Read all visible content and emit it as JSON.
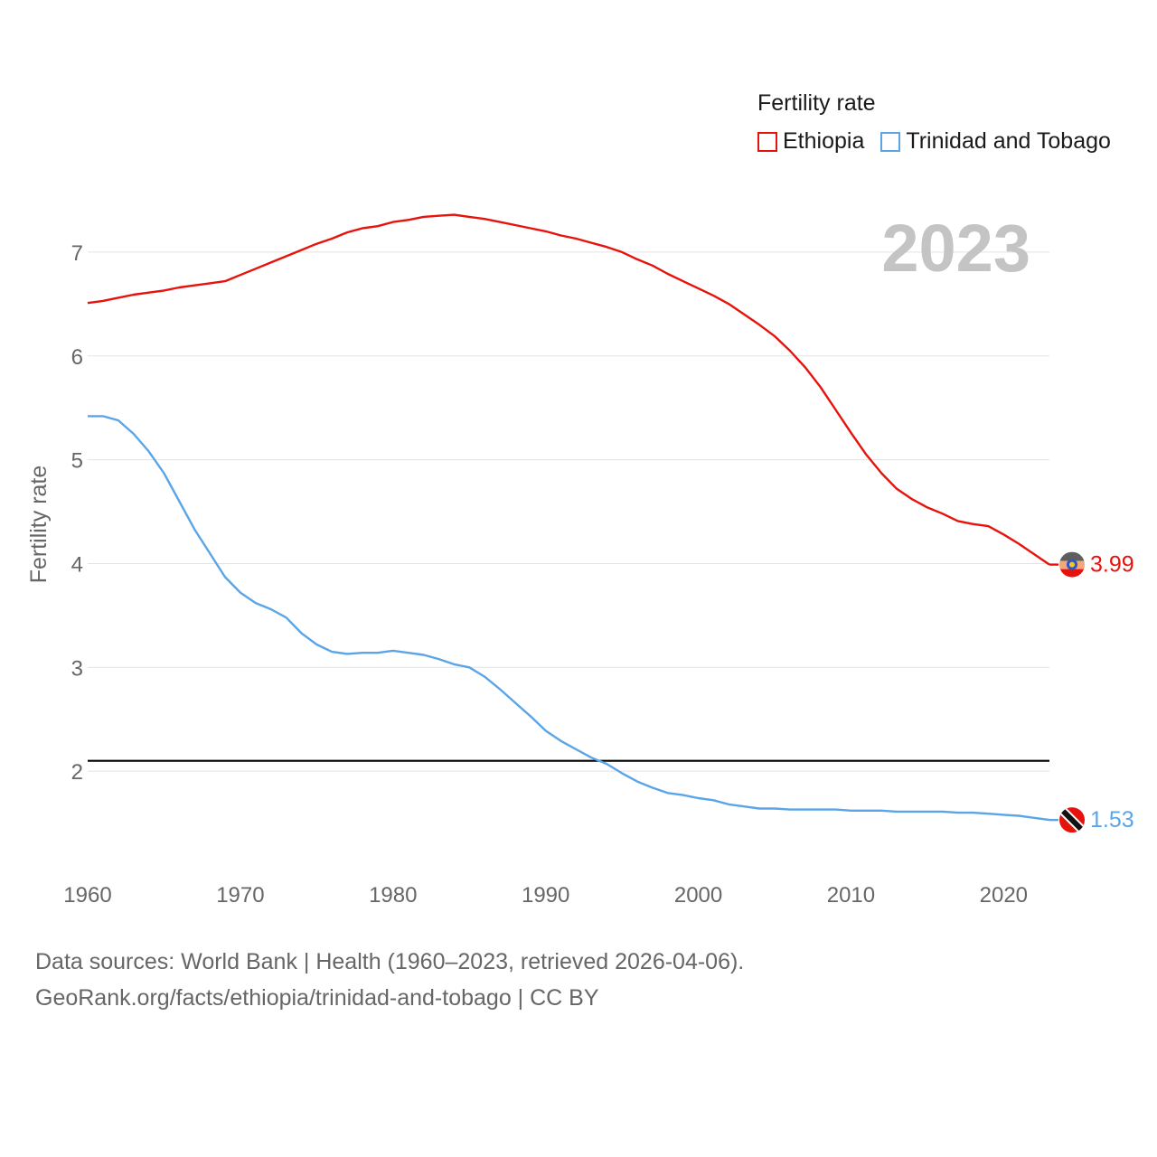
{
  "legend": {
    "title": "Fertility rate",
    "items": [
      {
        "label": "Ethiopia",
        "color": "#e8120c"
      },
      {
        "label": "Trinidad and Tobago",
        "color": "#5aa5e8"
      }
    ]
  },
  "footer": {
    "line1": "Data sources: World Bank | Health (1960–2023, retrieved 2026-04-06).",
    "line2": "GeoRank.org/facts/ethiopia/trinidad-and-tobago | CC BY"
  },
  "chart_data": {
    "type": "line",
    "title": "Fertility rate",
    "year_label": "2023",
    "xlabel": "",
    "ylabel": "Fertility rate",
    "xlim": [
      1960,
      2023
    ],
    "ylim": [
      1.0,
      7.6
    ],
    "x_ticks": [
      1960,
      1970,
      1980,
      1990,
      2000,
      2010,
      2020
    ],
    "y_ticks": [
      2,
      3,
      4,
      5,
      6,
      7
    ],
    "reference_line": {
      "y": 2.1,
      "color": "#000000"
    },
    "end_labels": [
      "3.99",
      "1.53"
    ],
    "series": [
      {
        "name": "Ethiopia",
        "color": "#e8120c",
        "x": [
          1960,
          1961,
          1962,
          1963,
          1964,
          1965,
          1966,
          1967,
          1968,
          1969,
          1970,
          1971,
          1972,
          1973,
          1974,
          1975,
          1976,
          1977,
          1978,
          1979,
          1980,
          1981,
          1982,
          1983,
          1984,
          1985,
          1986,
          1987,
          1988,
          1989,
          1990,
          1991,
          1992,
          1993,
          1994,
          1995,
          1996,
          1997,
          1998,
          1999,
          2000,
          2001,
          2002,
          2003,
          2004,
          2005,
          2006,
          2007,
          2008,
          2009,
          2010,
          2011,
          2012,
          2013,
          2014,
          2015,
          2016,
          2017,
          2018,
          2019,
          2020,
          2021,
          2022,
          2023
        ],
        "values": [
          6.51,
          6.53,
          6.56,
          6.59,
          6.61,
          6.63,
          6.66,
          6.68,
          6.7,
          6.72,
          6.78,
          6.84,
          6.9,
          6.96,
          7.02,
          7.08,
          7.13,
          7.19,
          7.23,
          7.25,
          7.29,
          7.31,
          7.34,
          7.35,
          7.36,
          7.34,
          7.32,
          7.29,
          7.26,
          7.23,
          7.2,
          7.16,
          7.13,
          7.09,
          7.05,
          7.0,
          6.93,
          6.87,
          6.79,
          6.72,
          6.65,
          6.58,
          6.5,
          6.4,
          6.3,
          6.19,
          6.05,
          5.89,
          5.7,
          5.48,
          5.26,
          5.05,
          4.87,
          4.72,
          4.62,
          4.54,
          4.48,
          4.41,
          4.38,
          4.36,
          4.28,
          4.19,
          4.09,
          3.99
        ]
      },
      {
        "name": "Trinidad and Tobago",
        "color": "#5aa5e8",
        "x": [
          1960,
          1961,
          1962,
          1963,
          1964,
          1965,
          1966,
          1967,
          1968,
          1969,
          1970,
          1971,
          1972,
          1973,
          1974,
          1975,
          1976,
          1977,
          1978,
          1979,
          1980,
          1981,
          1982,
          1983,
          1984,
          1985,
          1986,
          1987,
          1988,
          1989,
          1990,
          1991,
          1992,
          1993,
          1994,
          1995,
          1996,
          1997,
          1998,
          1999,
          2000,
          2001,
          2002,
          2003,
          2004,
          2005,
          2006,
          2007,
          2008,
          2009,
          2010,
          2011,
          2012,
          2013,
          2014,
          2015,
          2016,
          2017,
          2018,
          2019,
          2020,
          2021,
          2022,
          2023
        ],
        "values": [
          5.42,
          5.42,
          5.38,
          5.25,
          5.08,
          4.87,
          4.6,
          4.33,
          4.1,
          3.87,
          3.72,
          3.62,
          3.56,
          3.48,
          3.33,
          3.22,
          3.15,
          3.13,
          3.14,
          3.14,
          3.16,
          3.14,
          3.12,
          3.08,
          3.03,
          3.0,
          2.91,
          2.79,
          2.66,
          2.53,
          2.39,
          2.29,
          2.21,
          2.13,
          2.07,
          1.98,
          1.9,
          1.84,
          1.79,
          1.77,
          1.74,
          1.72,
          1.68,
          1.66,
          1.64,
          1.64,
          1.63,
          1.63,
          1.63,
          1.63,
          1.62,
          1.62,
          1.62,
          1.61,
          1.61,
          1.61,
          1.61,
          1.6,
          1.6,
          1.59,
          1.58,
          1.57,
          1.55,
          1.53
        ]
      }
    ]
  }
}
